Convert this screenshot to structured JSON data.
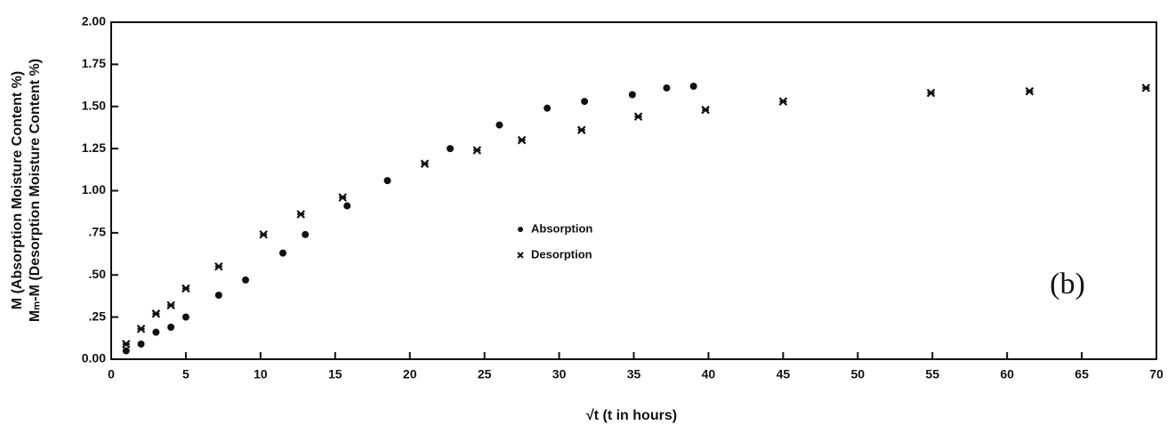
{
  "chart_data": {
    "type": "scatter",
    "ylabel_lines": [
      "M (Absorption Moisture Content %)",
      "Mₘ-M (Desorption Moisture Content %)"
    ],
    "xlabel": "√t (t in hours)",
    "annotation": "(b)",
    "xlim": [
      0,
      70
    ],
    "xticks": [
      0,
      5,
      10,
      15,
      20,
      25,
      30,
      35,
      40,
      45,
      50,
      55,
      60,
      65,
      70
    ],
    "ylim": [
      0,
      2
    ],
    "yticks": [
      {
        "value": 0,
        "label": "0.00"
      },
      {
        "value": 0.25,
        "label": ".25"
      },
      {
        "value": 0.5,
        "label": ".50"
      },
      {
        "value": 0.75,
        "label": ".75"
      },
      {
        "value": 1,
        "label": "1.00"
      },
      {
        "value": 1.25,
        "label": "1.25"
      },
      {
        "value": 1.5,
        "label": "1.50"
      },
      {
        "value": 1.75,
        "label": "1.75"
      },
      {
        "value": 2,
        "label": "2.00"
      }
    ],
    "series": [
      {
        "name": "Absorption",
        "color": "#111111",
        "marker": "circle",
        "x": [
          1,
          2,
          3,
          4,
          5,
          7.2,
          9,
          11.5,
          13,
          15.8,
          18.5,
          22.7,
          26,
          29.2,
          31.7,
          34.9,
          37.2,
          39
        ],
        "values": [
          0.05,
          0.09,
          0.16,
          0.19,
          0.25,
          0.38,
          0.47,
          0.63,
          0.74,
          0.91,
          1.06,
          1.25,
          1.39,
          1.49,
          1.53,
          1.57,
          1.61,
          1.62
        ]
      },
      {
        "name": "Desorption",
        "color": "#111111",
        "marker": "x",
        "x": [
          1,
          2,
          3,
          4,
          5,
          7.2,
          10.2,
          12.7,
          15.5,
          21,
          24.5,
          27.5,
          31.5,
          35.3,
          39.8,
          45,
          54.9,
          61.5,
          69.3
        ],
        "values": [
          0.09,
          0.18,
          0.27,
          0.32,
          0.42,
          0.55,
          0.74,
          0.86,
          0.96,
          1.16,
          1.24,
          1.3,
          1.36,
          1.44,
          1.48,
          1.53,
          1.58,
          1.59,
          1.61
        ]
      }
    ]
  }
}
